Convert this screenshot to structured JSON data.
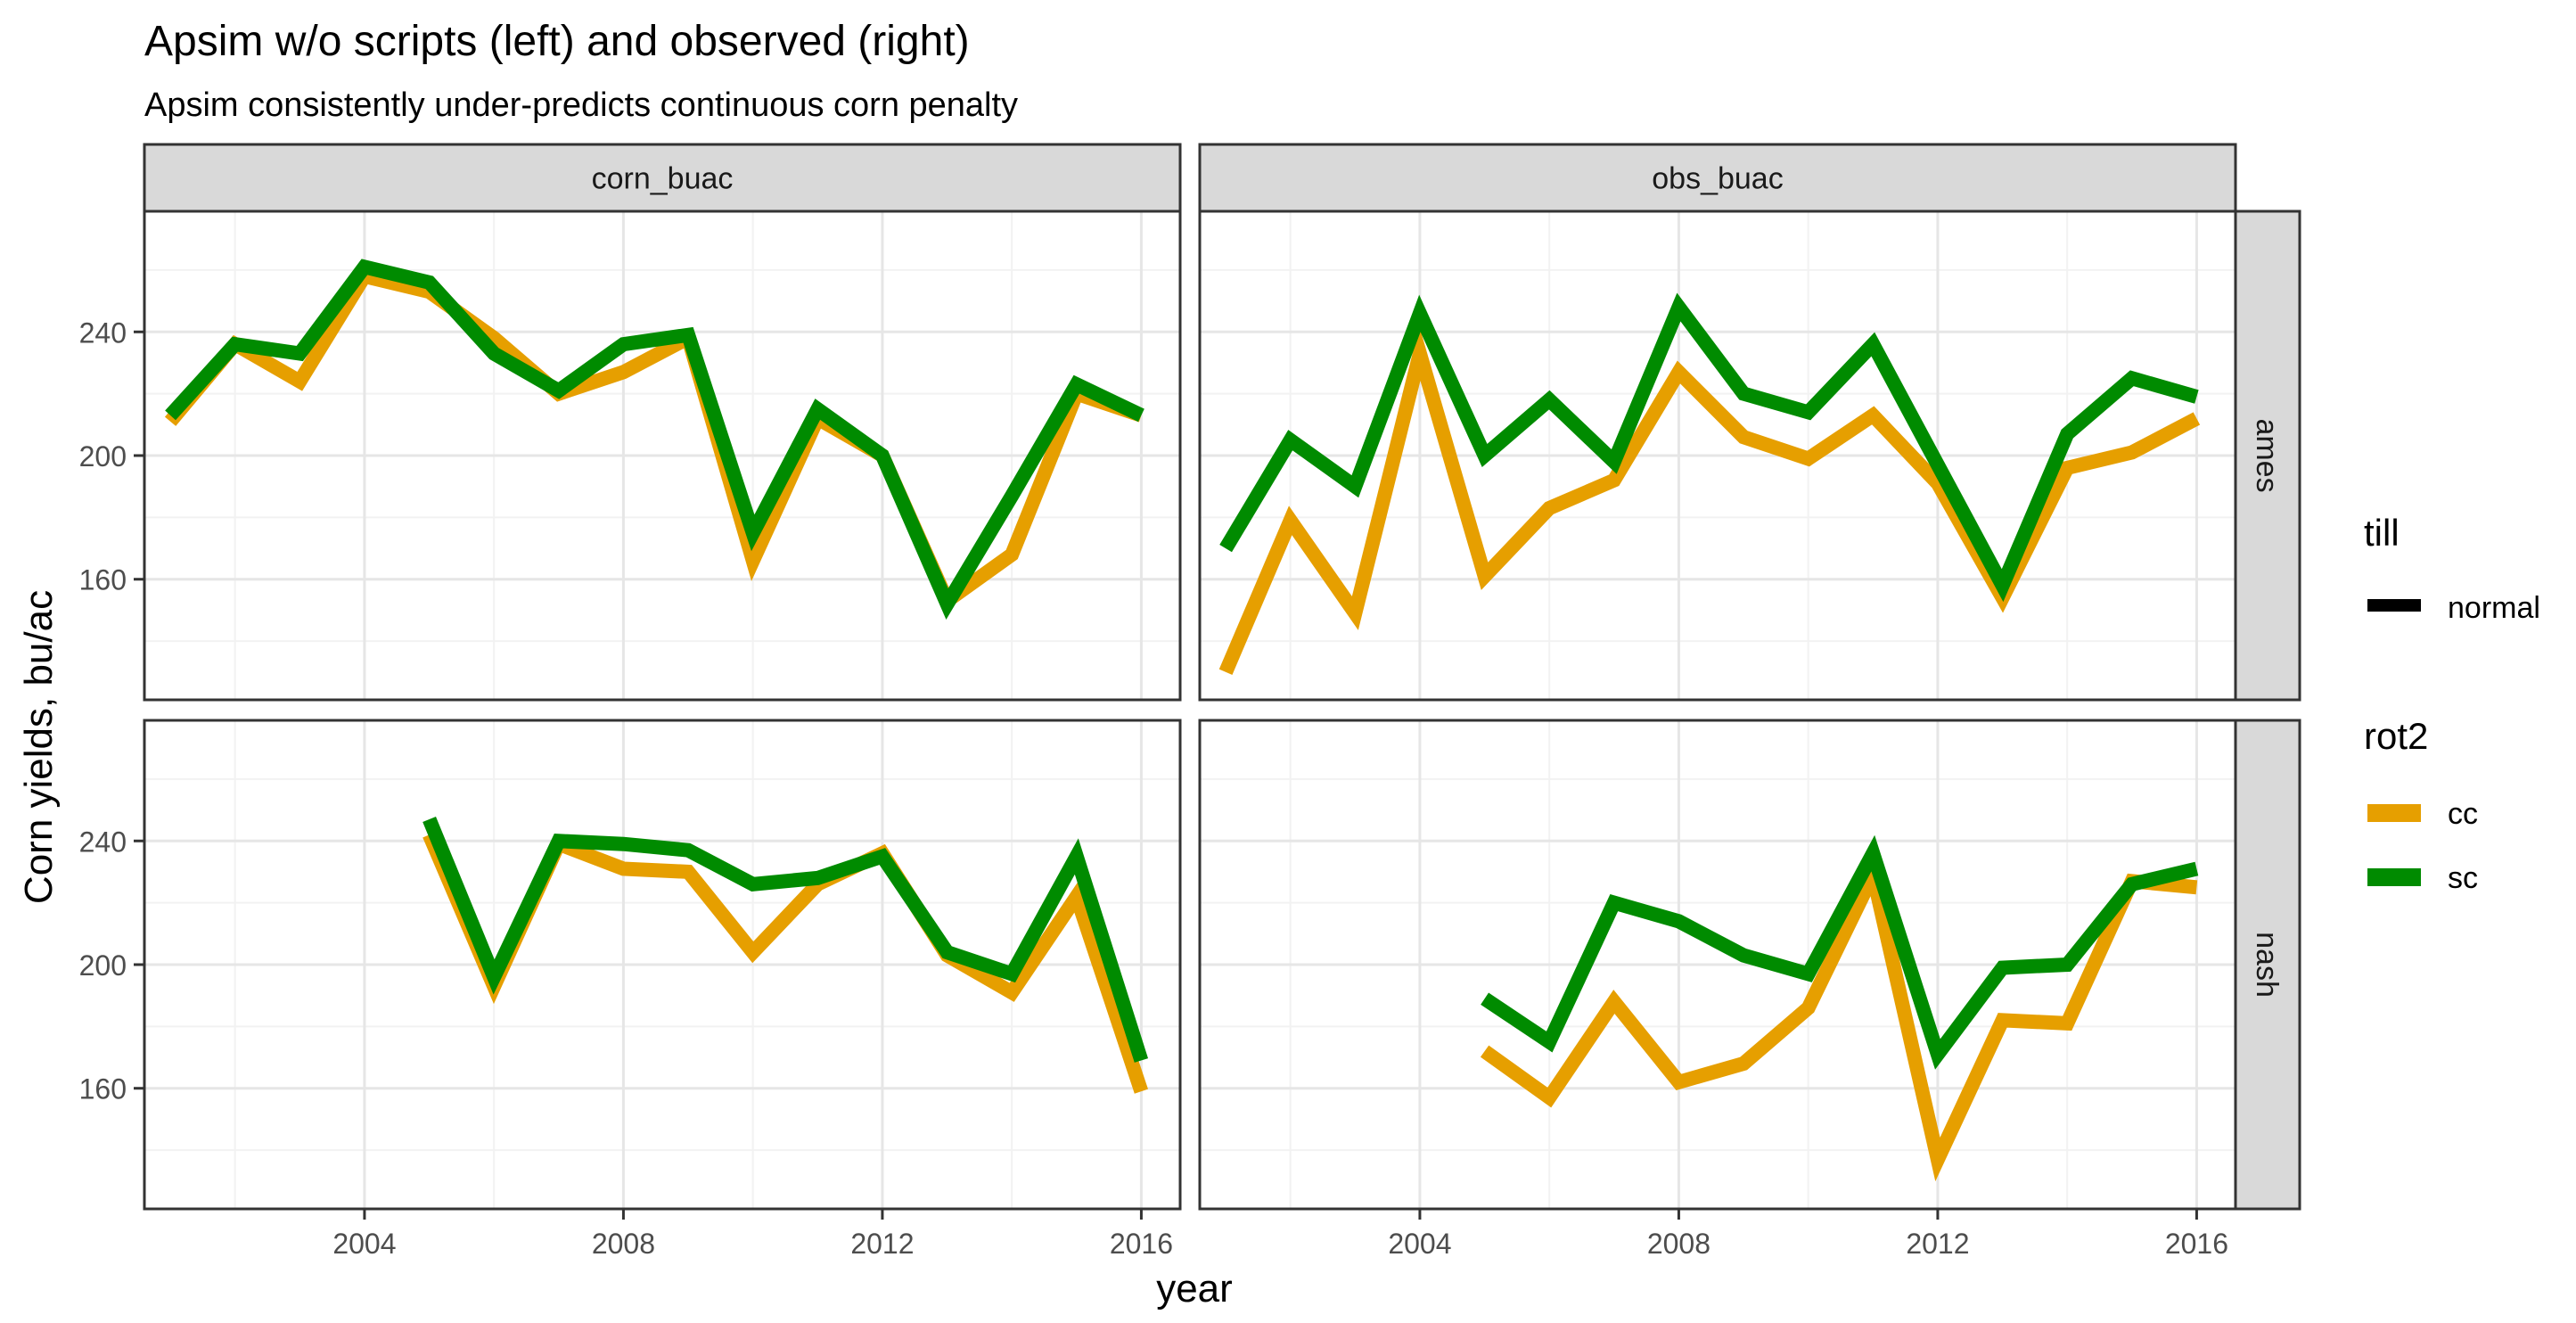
{
  "chart_data": {
    "type": "line",
    "title": "Apsim w/o scripts (left) and observed (right)",
    "subtitle": "Apsim consistently under-predicts continuous corn penalty",
    "xlabel": "year",
    "ylabel": "Corn yields, bu/ac",
    "xlim": [
      2000.6,
      2016.6
    ],
    "ylim": [
      121,
      279
    ],
    "x_ticks": [
      "2004",
      "2008",
      "2012",
      "2016"
    ],
    "y_ticks": [
      "160",
      "200",
      "240"
    ],
    "grid": true,
    "legend_position": "right",
    "facet_cols": [
      "corn_buac",
      "obs_buac"
    ],
    "facet_rows": [
      "ames",
      "nash"
    ],
    "legend": {
      "till_title": "till",
      "till_items": [
        "normal"
      ],
      "rot_title": "rot2",
      "rot_items": [
        {
          "name": "cc",
          "color": "#E69F00"
        },
        {
          "name": "sc",
          "color": "#008B00"
        }
      ]
    },
    "colors": {
      "cc": "#E69F00",
      "sc": "#008B00"
    },
    "panels": [
      {
        "col": "corn_buac",
        "row": "ames",
        "series": [
          {
            "name": "cc",
            "x": [
              2001,
              2002,
              2003,
              2004,
              2005,
              2006,
              2007,
              2008,
              2009,
              2010,
              2011,
              2012,
              2013,
              2014,
              2015,
              2016
            ],
            "y": [
              211,
              236,
              224,
              258,
              253,
              238,
              220,
              227,
              238,
              166,
              212,
              200,
              153,
              168,
              220,
              213
            ]
          },
          {
            "name": "sc",
            "x": [
              2001,
              2002,
              2003,
              2004,
              2005,
              2006,
              2007,
              2008,
              2009,
              2010,
              2011,
              2012,
              2013,
              2014,
              2015,
              2016
            ],
            "y": [
              213,
              236,
              233,
              261,
              256,
              233,
              221,
              236,
              239,
              175,
              215,
              200,
              152,
              187,
              223,
              213
            ]
          }
        ]
      },
      {
        "col": "obs_buac",
        "row": "ames",
        "series": [
          {
            "name": "cc",
            "x": [
              2001,
              2002,
              2003,
              2004,
              2005,
              2006,
              2007,
              2008,
              2009,
              2010,
              2011,
              2012,
              2013,
              2014,
              2015,
              2016
            ],
            "y": [
              130,
              179,
              149,
              233,
              161,
              183,
              192,
              227,
              206,
              199,
              213,
              191,
              154,
              196,
              201,
              212
            ]
          },
          {
            "name": "sc",
            "x": [
              2001,
              2002,
              2003,
              2004,
              2005,
              2006,
              2007,
              2008,
              2009,
              2010,
              2011,
              2012,
              2013,
              2014,
              2015,
              2016
            ],
            "y": [
              170,
              205,
              190,
              246,
              200,
              218,
              198,
              248,
              220,
              214,
              236,
              197,
              158,
              207,
              225,
              219
            ]
          }
        ]
      },
      {
        "col": "corn_buac",
        "row": "nash",
        "series": [
          {
            "name": "cc",
            "x": [
              2005,
              2006,
              2007,
              2008,
              2009,
              2010,
              2011,
              2012,
              2013,
              2014,
              2015,
              2016
            ],
            "y": [
              242,
              193,
              239,
              231,
              230,
              204,
              226,
              236,
              203,
              191,
              222,
              159
            ]
          },
          {
            "name": "sc",
            "x": [
              2005,
              2006,
              2007,
              2008,
              2009,
              2010,
              2011,
              2012,
              2013,
              2014,
              2015,
              2016
            ],
            "y": [
              247,
              196,
              240,
              239,
              237,
              226,
              228,
              235,
              204,
              197,
              235,
              169
            ]
          }
        ]
      },
      {
        "col": "obs_buac",
        "row": "nash",
        "series": [
          {
            "name": "cc",
            "x": [
              2005,
              2006,
              2007,
              2008,
              2009,
              2010,
              2011,
              2012,
              2013,
              2014,
              2015,
              2016
            ],
            "y": [
              172,
              157,
              188,
              162,
              168,
              186,
              229,
              137,
              182,
              181,
              227,
              225
            ]
          },
          {
            "name": "sc",
            "x": [
              2005,
              2006,
              2007,
              2008,
              2009,
              2010,
              2011,
              2012,
              2013,
              2014,
              2015,
              2016
            ],
            "y": [
              189,
              175,
              220,
              214,
              203,
              197,
              236,
              171,
              199,
              200,
              226,
              231
            ]
          }
        ]
      }
    ]
  }
}
